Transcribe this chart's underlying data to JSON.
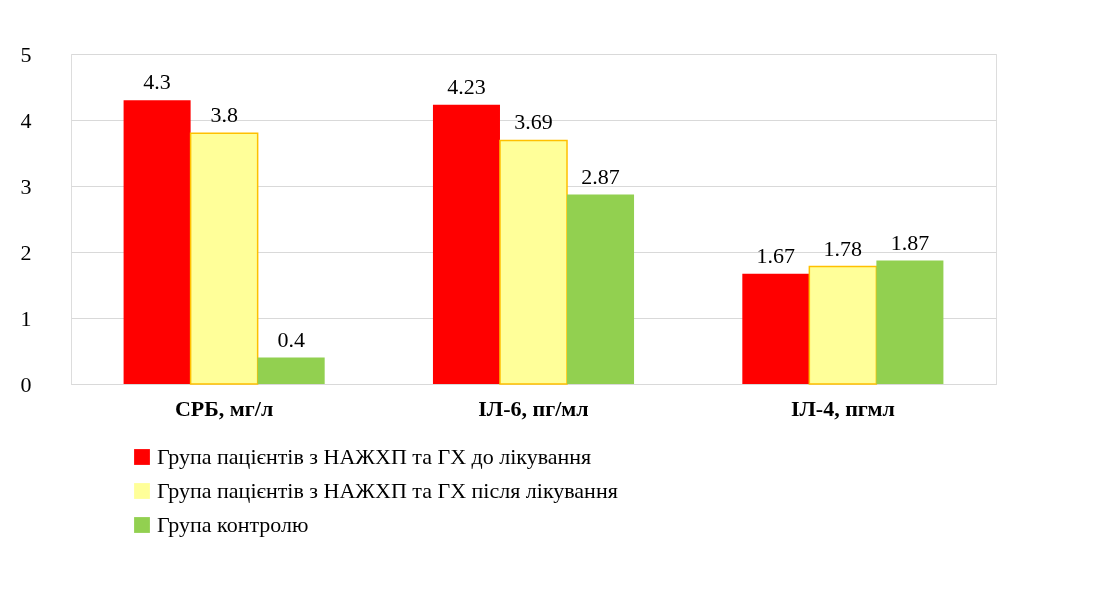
{
  "chart_data": {
    "type": "bar",
    "categories": [
      "СРБ, мг/л",
      "ІЛ-6, пг/мл",
      "ІЛ-4, пгмл"
    ],
    "series": [
      {
        "name": "Група пацієнтів з НАЖХП та ГХ до лікування",
        "color": "#ff0000",
        "values": [
          4.3,
          4.23,
          1.67
        ]
      },
      {
        "name": "Група пацієнтів з НАЖХП та ГХ після лікування",
        "color": "#ffff99",
        "values": [
          3.8,
          3.69,
          1.78
        ]
      },
      {
        "name": "Група контролю",
        "color": "#92d050",
        "values": [
          0.4,
          2.87,
          1.87
        ]
      }
    ],
    "ylim": [
      0,
      5
    ],
    "yticks": [
      0,
      1,
      2,
      3,
      4,
      5
    ],
    "grid": "y",
    "legend": "bottom",
    "data_labels": true
  }
}
